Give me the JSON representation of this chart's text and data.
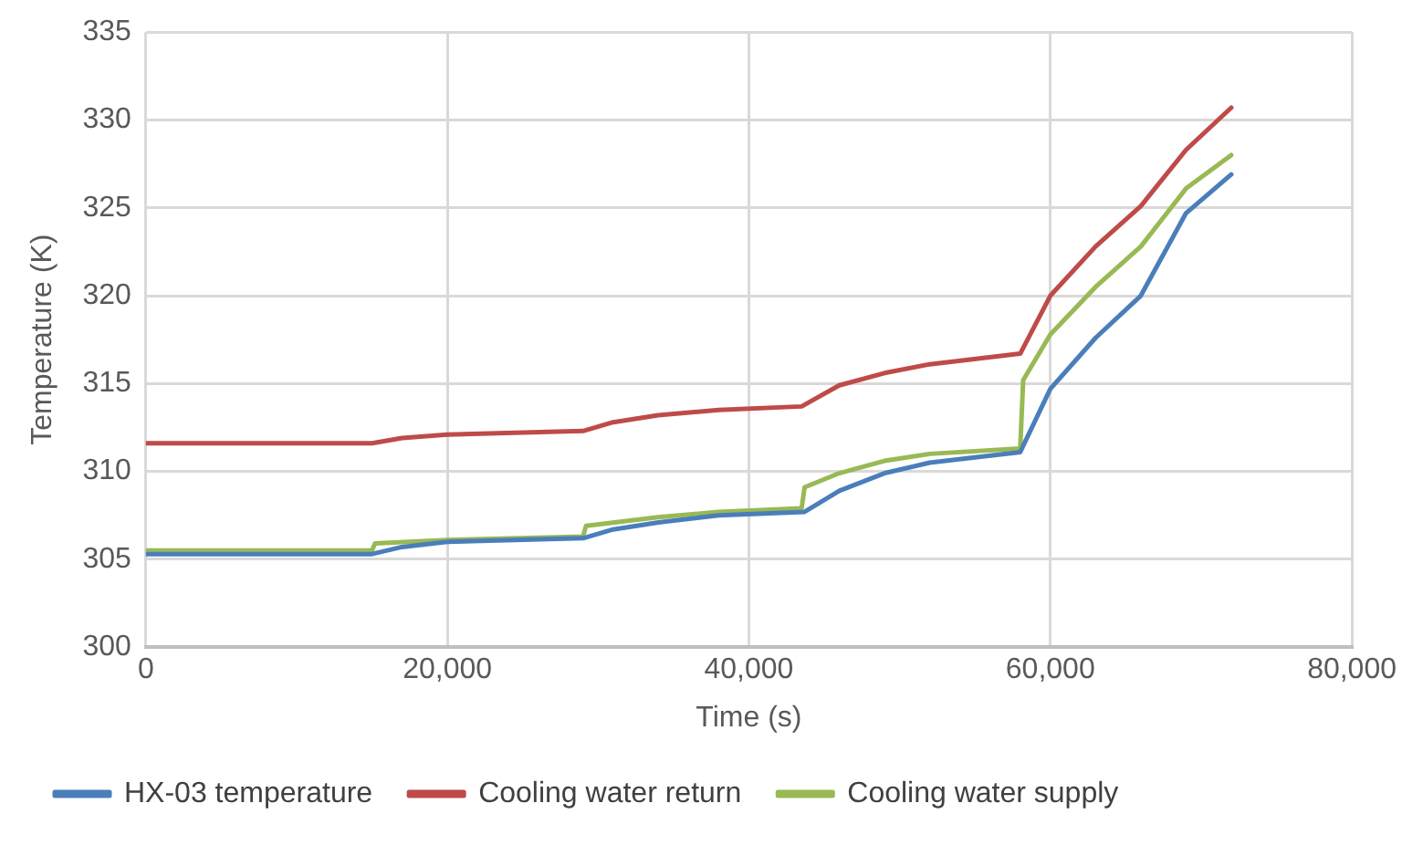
{
  "chart_data": {
    "type": "line",
    "xlabel": "Time (s)",
    "ylabel": "Temperature (K)",
    "xlim": [
      0,
      80000
    ],
    "xticks": [
      0,
      {
        "value": 20000,
        "label": "20,000"
      },
      {
        "value": 40000,
        "label": "40,000"
      },
      {
        "value": 60000,
        "label": "60,000"
      },
      {
        "value": 80000,
        "label": "80,000"
      }
    ],
    "ylim": [
      300,
      335
    ],
    "yticks": [
      300,
      305,
      310,
      315,
      320,
      325,
      330,
      335
    ],
    "grid": true,
    "legend": "bottom",
    "marker": "none",
    "line_style": "solid",
    "series": [
      {
        "name": "HX-03 temperature",
        "color": "#4a7ebb",
        "x": [
          0,
          15000,
          17000,
          20000,
          29000,
          31000,
          34000,
          38000,
          43700,
          46000,
          49000,
          52000,
          58000,
          60000,
          63000,
          66000,
          69000,
          72000
        ],
        "values": [
          305.3,
          305.3,
          305.7,
          306,
          306.2,
          306.7,
          307.1,
          307.5,
          307.7,
          308.9,
          309.9,
          310.5,
          311.1,
          314.7,
          317.6,
          320,
          324.7,
          326.9
        ]
      },
      {
        "name": "Cooling water return",
        "color": "#be4b48",
        "x": [
          0,
          15000,
          17000,
          20000,
          29000,
          31000,
          34000,
          38000,
          43500,
          46000,
          49000,
          52000,
          58000,
          60000,
          63000,
          66000,
          69000,
          72000
        ],
        "values": [
          311.6,
          311.6,
          311.9,
          312.1,
          312.3,
          312.8,
          313.2,
          313.5,
          313.7,
          314.9,
          315.6,
          316.1,
          316.7,
          320,
          322.8,
          325.1,
          328.3,
          330.7
        ]
      },
      {
        "name": "Cooling water supply",
        "color": "#98b954",
        "x": [
          0,
          15000,
          15200,
          20000,
          29000,
          29200,
          34000,
          38000,
          43500,
          43700,
          46000,
          49000,
          52000,
          58000,
          58200,
          60000,
          63000,
          66000,
          69000,
          72000
        ],
        "values": [
          305.5,
          305.5,
          305.9,
          306.1,
          306.3,
          306.9,
          307.4,
          307.7,
          307.9,
          309.1,
          309.9,
          310.6,
          311,
          311.3,
          315.2,
          317.8,
          320.5,
          322.8,
          326.1,
          328
        ]
      }
    ]
  }
}
